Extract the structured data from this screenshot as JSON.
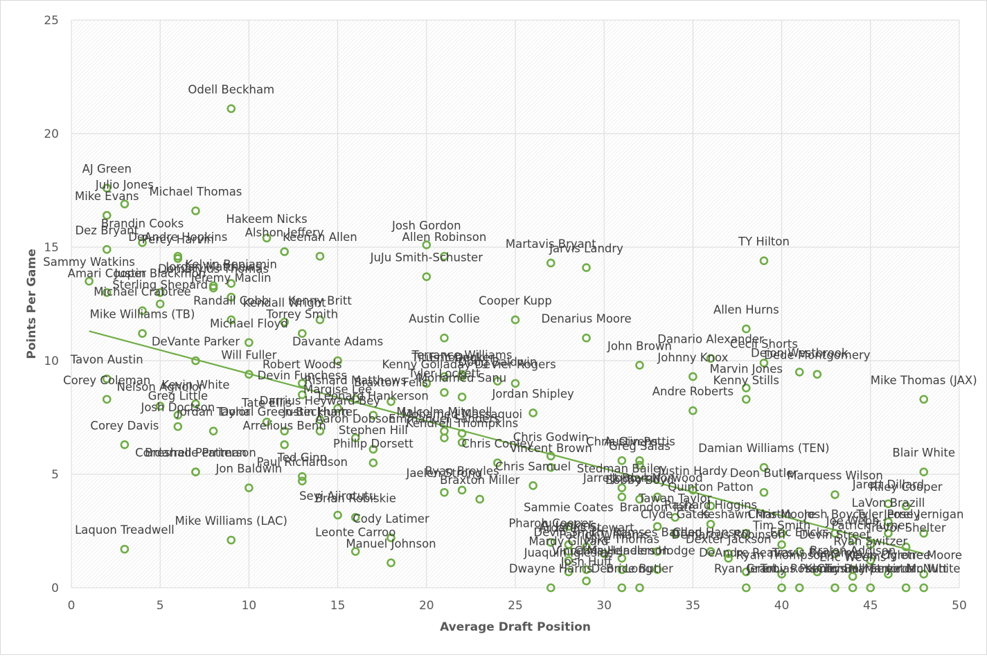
{
  "chart_data": {
    "type": "scatter",
    "xlabel": "Average Draft Position",
    "ylabel": "Points Per Game",
    "xlim": [
      0,
      50
    ],
    "ylim": [
      0,
      25
    ],
    "x_ticks": [
      "0",
      "5",
      "10",
      "15",
      "20",
      "25",
      "30",
      "35",
      "40",
      "45",
      "50"
    ],
    "y_ticks": [
      "0",
      "5",
      "10",
      "15",
      "20",
      "25"
    ],
    "grid": true,
    "trendline": {
      "type": "linear",
      "x": [
        1,
        48
      ],
      "y": [
        11.3,
        1.5
      ]
    },
    "colors": {
      "marker": "#70ad47",
      "trend": "#70ad47",
      "grid": "#d9d9d9",
      "text": "#595959",
      "label": "#404040"
    },
    "points": [
      {
        "label": "Odell Beckham",
        "x": 9,
        "y": 21.1
      },
      {
        "label": "AJ Green",
        "x": 2,
        "y": 17.6
      },
      {
        "label": "Julio Jones",
        "x": 3,
        "y": 16.9
      },
      {
        "label": "Mike Evans",
        "x": 2,
        "y": 16.4
      },
      {
        "label": "Michael Thomas",
        "x": 7,
        "y": 16.6
      },
      {
        "label": "Dez Bryant",
        "x": 2,
        "y": 14.9
      },
      {
        "label": "Brandin Cooks",
        "x": 4,
        "y": 15.2
      },
      {
        "label": "DeAndre Hopkins",
        "x": 6,
        "y": 14.6
      },
      {
        "label": "Percy Harvin",
        "x": 6,
        "y": 14.5
      },
      {
        "label": "Hakeem Nicks",
        "x": 11,
        "y": 15.4
      },
      {
        "label": "Alshon Jeffery",
        "x": 12,
        "y": 14.8
      },
      {
        "label": "Keenan Allen",
        "x": 14,
        "y": 14.6
      },
      {
        "label": "Josh Gordon",
        "x": 20,
        "y": 15.1
      },
      {
        "label": "Allen Robinson",
        "x": 21,
        "y": 14.6
      },
      {
        "label": "JuJu Smith-Schuster",
        "x": 20,
        "y": 13.7
      },
      {
        "label": "Martavis Bryant",
        "x": 27,
        "y": 14.3
      },
      {
        "label": "Jarvis Landry",
        "x": 29,
        "y": 14.1
      },
      {
        "label": "TY Hilton",
        "x": 39,
        "y": 14.4
      },
      {
        "label": "Sammy Watkins",
        "x": 1,
        "y": 13.5
      },
      {
        "label": "Amari Cooper",
        "x": 2,
        "y": 13.0
      },
      {
        "label": "Justin Blackmon",
        "x": 5,
        "y": 13.0
      },
      {
        "label": "Jordan Matthews",
        "x": 8,
        "y": 13.3
      },
      {
        "label": "Kelvin Benjamin",
        "x": 9,
        "y": 13.4
      },
      {
        "label": "Jeremy Maclin",
        "x": 9,
        "y": 12.8
      },
      {
        "label": "Demaryius Thomas",
        "x": 8,
        "y": 13.2
      },
      {
        "label": "Sterling Shepard",
        "x": 5,
        "y": 12.5
      },
      {
        "label": "Kendall Wright",
        "x": 12,
        "y": 11.7
      },
      {
        "label": "Kenny Britt",
        "x": 14,
        "y": 11.8
      },
      {
        "label": "Torrey Smith",
        "x": 13,
        "y": 11.2
      },
      {
        "label": "Michael Crabtree",
        "x": 4,
        "y": 12.2
      },
      {
        "label": "Randall Cobb",
        "x": 9,
        "y": 11.8
      },
      {
        "label": "Mike Williams (TB)",
        "x": 4,
        "y": 11.2
      },
      {
        "label": "Cooper Kupp",
        "x": 25,
        "y": 11.8
      },
      {
        "label": "Austin Collie",
        "x": 21,
        "y": 11.0
      },
      {
        "label": "Denarius Moore",
        "x": 29,
        "y": 11.0
      },
      {
        "label": "Allen Hurns",
        "x": 38,
        "y": 11.4
      },
      {
        "label": "Michael Floyd",
        "x": 10,
        "y": 10.8
      },
      {
        "label": "Davante Adams",
        "x": 15,
        "y": 10.0
      },
      {
        "label": "Tavon Austin",
        "x": 2,
        "y": 9.2
      },
      {
        "label": "Will Fuller",
        "x": 10,
        "y": 9.4
      },
      {
        "label": "DeVante Parker",
        "x": 7,
        "y": 10.0
      },
      {
        "label": "Robert Woods",
        "x": 13,
        "y": 9.0
      },
      {
        "label": "John Brown",
        "x": 32,
        "y": 9.8
      },
      {
        "label": "Danario Alexander",
        "x": 36,
        "y": 10.1
      },
      {
        "label": "Johnny Knox",
        "x": 35,
        "y": 9.3
      },
      {
        "label": "Cecil Shorts",
        "x": 39,
        "y": 9.9
      },
      {
        "label": "Deion Westbrook",
        "x": 41,
        "y": 9.5
      },
      {
        "label": "Dede Montgomery",
        "x": 42,
        "y": 9.4
      },
      {
        "label": "Eric Decker",
        "x": 22,
        "y": 9.3
      },
      {
        "label": "Titus Young",
        "x": 21,
        "y": 9.3
      },
      {
        "label": "Terrance Williams",
        "x": 22,
        "y": 9.4
      },
      {
        "label": "Doug Baldwin",
        "x": 24,
        "y": 9.1
      },
      {
        "label": "DeVier Rogers",
        "x": 25,
        "y": 9.0
      },
      {
        "label": "Kenny Golladay",
        "x": 20,
        "y": 9.0
      },
      {
        "label": "Tyler Lockett",
        "x": 21,
        "y": 8.6
      },
      {
        "label": "Marvin Jones",
        "x": 38,
        "y": 8.8
      },
      {
        "label": "Kenny Stills",
        "x": 38,
        "y": 8.3
      },
      {
        "label": "Mike Thomas (JAX)",
        "x": 48,
        "y": 8.3
      },
      {
        "label": "Corey Coleman",
        "x": 2,
        "y": 8.3
      },
      {
        "label": "Kevin White",
        "x": 7,
        "y": 8.1
      },
      {
        "label": "Devin Funchess",
        "x": 13,
        "y": 8.5
      },
      {
        "label": "Rishard Matthews",
        "x": 16,
        "y": 8.3
      },
      {
        "label": "Braxton Fells",
        "x": 18,
        "y": 8.2
      },
      {
        "label": "Mohamed Sanu",
        "x": 22,
        "y": 8.4
      },
      {
        "label": "Jordan Shipley",
        "x": 26,
        "y": 7.7
      },
      {
        "label": "Andre Roberts",
        "x": 35,
        "y": 7.8
      },
      {
        "label": "Nelson Agholor",
        "x": 5,
        "y": 8.0
      },
      {
        "label": "Greg Little",
        "x": 6,
        "y": 7.6
      },
      {
        "label": "Josh Doctson",
        "x": 6,
        "y": 7.1
      },
      {
        "label": "Jordan Taylor",
        "x": 8,
        "y": 6.9
      },
      {
        "label": "Marqise Lee",
        "x": 15,
        "y": 7.9
      },
      {
        "label": "Leonard Hankerson",
        "x": 17,
        "y": 7.6
      },
      {
        "label": "Darrius Heyward-Bey",
        "x": 14,
        "y": 7.4
      },
      {
        "label": "Tate Ellis",
        "x": 11,
        "y": 7.3
      },
      {
        "label": "Corey Davis",
        "x": 3,
        "y": 6.3
      },
      {
        "label": "Dorial Green-Beckham",
        "x": 12,
        "y": 6.9
      },
      {
        "label": "Justin Hunter",
        "x": 14,
        "y": 6.9
      },
      {
        "label": "Malcolm Mitchell",
        "x": 21,
        "y": 6.9
      },
      {
        "label": "Mohamed Massaquoi",
        "x": 22,
        "y": 6.8
      },
      {
        "label": "Aaron Dobson",
        "x": 16,
        "y": 6.6
      },
      {
        "label": "Emmanuel Sanders",
        "x": 21,
        "y": 6.6
      },
      {
        "label": "Stephen Hill",
        "x": 17,
        "y": 6.1
      },
      {
        "label": "Kendrell Thompkins",
        "x": 22,
        "y": 6.4
      },
      {
        "label": "Chris Godwin",
        "x": 27,
        "y": 5.8
      },
      {
        "label": "Austin Pettis",
        "x": 32,
        "y": 5.6
      },
      {
        "label": "Chris Givens",
        "x": 31,
        "y": 5.6
      },
      {
        "label": "Vincent Brown",
        "x": 27,
        "y": 5.3
      },
      {
        "label": "Greg Salas",
        "x": 32,
        "y": 5.4
      },
      {
        "label": "Damian Williams (TEN)",
        "x": 39,
        "y": 5.3
      },
      {
        "label": "Cordarrelle Patterson",
        "x": 7,
        "y": 5.1
      },
      {
        "label": "Arrelious Benn",
        "x": 12,
        "y": 6.3
      },
      {
        "label": "Ted Ginn",
        "x": 13,
        "y": 4.9
      },
      {
        "label": "Paul Richardson",
        "x": 13,
        "y": 4.7
      },
      {
        "label": "Breshad Perriman",
        "x": 7,
        "y": 5.1
      },
      {
        "label": "Phillip Dorsett",
        "x": 17,
        "y": 5.5
      },
      {
        "label": "Chris Conley",
        "x": 24,
        "y": 5.5
      },
      {
        "label": "Stedman Bailey",
        "x": 31,
        "y": 4.4
      },
      {
        "label": "Deon Butler",
        "x": 39,
        "y": 4.2
      },
      {
        "label": "Marquess Wilson",
        "x": 43,
        "y": 4.1
      },
      {
        "label": "Blair White",
        "x": 48,
        "y": 5.1
      },
      {
        "label": "Jon Baldwin",
        "x": 10,
        "y": 4.4
      },
      {
        "label": "Jaelen Strong",
        "x": 21,
        "y": 4.2
      },
      {
        "label": "Ryan Broyles",
        "x": 22,
        "y": 4.3
      },
      {
        "label": "Chris Samuel",
        "x": 26,
        "y": 4.5
      },
      {
        "label": "Jarrett Boykin",
        "x": 31,
        "y": 4.0
      },
      {
        "label": "Bobby Boyd",
        "x": 32,
        "y": 3.9
      },
      {
        "label": "Jordan Norwood",
        "x": 33,
        "y": 4.0
      },
      {
        "label": "Justin Hardy",
        "x": 35,
        "y": 4.3
      },
      {
        "label": "Quinton Patton",
        "x": 36,
        "y": 3.6
      },
      {
        "label": "Jarett Dillard",
        "x": 46,
        "y": 3.7
      },
      {
        "label": "Riley Cooper",
        "x": 47,
        "y": 3.6
      },
      {
        "label": "Braxton Miller",
        "x": 23,
        "y": 3.9
      },
      {
        "label": "Brian Robiskie",
        "x": 16,
        "y": 3.1
      },
      {
        "label": "Tawan Taylor",
        "x": 34,
        "y": 3.1
      },
      {
        "label": "Brandon Tate",
        "x": 33,
        "y": 2.7
      },
      {
        "label": "LaVon Brazill",
        "x": 46,
        "y": 2.9
      },
      {
        "label": "Jerrel Jernigan",
        "x": 48,
        "y": 2.4
      },
      {
        "label": "Seyi Ajirotutu",
        "x": 15,
        "y": 3.2
      },
      {
        "label": "Sammie Coates",
        "x": 28,
        "y": 2.7
      },
      {
        "label": "Rashard Higgins",
        "x": 36,
        "y": 2.8
      },
      {
        "label": "Clyde Gates",
        "x": 34,
        "y": 2.4
      },
      {
        "label": "Keshawn Martin",
        "x": 38,
        "y": 2.4
      },
      {
        "label": "Chris Moore",
        "x": 40,
        "y": 2.4
      },
      {
        "label": "Josh Boyce",
        "x": 43,
        "y": 2.4
      },
      {
        "label": "Joe Webb",
        "x": 44,
        "y": 2.1
      },
      {
        "label": "Tyler Posey",
        "x": 46,
        "y": 2.4
      },
      {
        "label": "Mike Williams (LAC)",
        "x": 9,
        "y": 2.1
      },
      {
        "label": "Devin Smith",
        "x": 28,
        "y": 1.6
      },
      {
        "label": "Pharoh Cooper",
        "x": 27,
        "y": 2.0
      },
      {
        "label": "AJ Jenkins",
        "x": 28,
        "y": 1.9
      },
      {
        "label": "Ramses Barden",
        "x": 33,
        "y": 1.6
      },
      {
        "label": "Tim Smith",
        "x": 40,
        "y": 1.9
      },
      {
        "label": "Eric Ericks",
        "x": 41,
        "y": 1.6
      },
      {
        "label": "Devin Street",
        "x": 43,
        "y": 1.5
      },
      {
        "label": "Patrick Turner",
        "x": 45,
        "y": 1.9
      },
      {
        "label": "Trevor Shelter",
        "x": 47,
        "y": 1.8
      },
      {
        "label": "Laquon Treadwell",
        "x": 3,
        "y": 1.7
      },
      {
        "label": "Cody Latimer",
        "x": 18,
        "y": 2.2
      },
      {
        "label": "Leonte Carroo",
        "x": 16,
        "y": 1.6
      },
      {
        "label": "Manuel Johnson",
        "x": 18,
        "y": 1.1
      },
      {
        "label": "Ardarius Stewart",
        "x": 29,
        "y": 1.8
      },
      {
        "label": "Mardy Gilyard",
        "x": 28,
        "y": 1.2
      },
      {
        "label": "Patrick Williams",
        "x": 30,
        "y": 1.5
      },
      {
        "label": "Mike Thomas",
        "x": 31,
        "y": 1.3
      },
      {
        "label": "Chad Hansen",
        "x": 36,
        "y": 1.6
      },
      {
        "label": "Dexter Jackson",
        "x": 37,
        "y": 1.3
      },
      {
        "label": "Demarcus Robinson",
        "x": 37,
        "y": 1.5
      },
      {
        "label": "Vince Mayle",
        "x": 29,
        "y": 0.8
      },
      {
        "label": "Ryan Switzer",
        "x": 45,
        "y": 1.2
      },
      {
        "label": "Bralon Addison",
        "x": 44,
        "y": 0.8
      },
      {
        "label": "Juaquin Iglesias",
        "x": 28,
        "y": 0.7
      },
      {
        "label": "Josh Huff",
        "x": 29,
        "y": 0.3
      },
      {
        "label": "Chris Henderson",
        "x": 31,
        "y": 0.8
      },
      {
        "label": "Jaelen Hodge",
        "x": 33,
        "y": 0.8
      },
      {
        "label": "DeAndre Reaves",
        "x": 38,
        "y": 0.7
      },
      {
        "label": "Ryan Thompson",
        "x": 40,
        "y": 0.6
      },
      {
        "label": "Travis Benjamin",
        "x": 42,
        "y": 0.7
      },
      {
        "label": "Eric Weems",
        "x": 44,
        "y": 0.5
      },
      {
        "label": "Kevin Ogletree",
        "x": 46,
        "y": 0.6
      },
      {
        "label": "Tyrone Moore",
        "x": 48,
        "y": 0.6
      },
      {
        "label": "Dwayne Harris",
        "x": 27,
        "y": 0.0
      },
      {
        "label": "Deon Long",
        "x": 31,
        "y": 0.0
      },
      {
        "label": "Brice Butler",
        "x": 32,
        "y": 0.0
      },
      {
        "label": "Ryan Grant",
        "x": 38,
        "y": 0.0
      },
      {
        "label": "Jeremy Ross",
        "x": 40,
        "y": 0.0
      },
      {
        "label": "Tobias Palmer",
        "x": 41,
        "y": 0.0
      },
      {
        "label": "Kenny Bell",
        "x": 43,
        "y": 0.0
      },
      {
        "label": "Chris Harper",
        "x": 44,
        "y": 0.0
      },
      {
        "label": "Tommy Streeter",
        "x": 45,
        "y": 0.0
      },
      {
        "label": "Marvin McNutt",
        "x": 47,
        "y": 0.0
      },
      {
        "label": "Jordan White",
        "x": 48,
        "y": 0.0
      }
    ]
  }
}
